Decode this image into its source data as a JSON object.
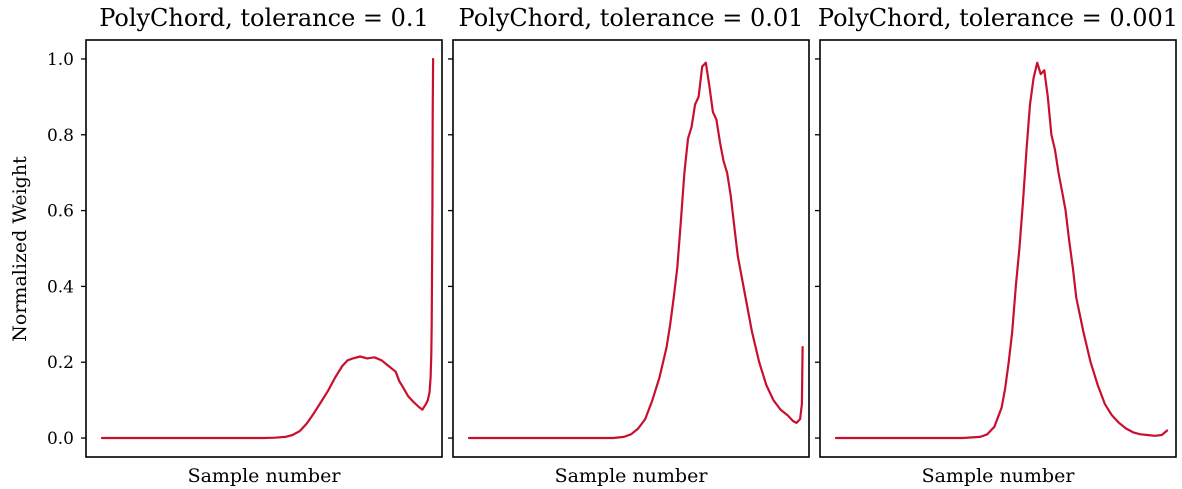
{
  "chart_data": [
    {
      "type": "line",
      "title": "PolyChord, tolerance = 0.1",
      "xlabel": "Sample number",
      "ylabel": "Normalized Weight",
      "ylim": [
        -0.05,
        1.05
      ],
      "xlim": [
        0,
        1
      ],
      "yticks": [
        "0.0",
        "0.2",
        "0.4",
        "0.6",
        "0.8",
        "1.0"
      ],
      "show_yticks": true,
      "grid": false,
      "color": "#c8102e",
      "series": [
        {
          "x": [
            0.045,
            0.1,
            0.2,
            0.3,
            0.4,
            0.5,
            0.53,
            0.56,
            0.58,
            0.6,
            0.62,
            0.64,
            0.66,
            0.68,
            0.7,
            0.72,
            0.735,
            0.75,
            0.77,
            0.79,
            0.81,
            0.83,
            0.85,
            0.87,
            0.88,
            0.89,
            0.905,
            0.92,
            0.935,
            0.945,
            0.955,
            0.96,
            0.965,
            0.968,
            0.97,
            0.971,
            0.972,
            0.973,
            0.974,
            0.975
          ],
          "y": [
            0.0,
            0.0,
            0.0,
            0.0,
            0.0,
            0.0,
            0.001,
            0.003,
            0.008,
            0.018,
            0.038,
            0.065,
            0.095,
            0.125,
            0.16,
            0.19,
            0.205,
            0.21,
            0.215,
            0.21,
            0.213,
            0.205,
            0.19,
            0.175,
            0.15,
            0.135,
            0.11,
            0.095,
            0.082,
            0.075,
            0.09,
            0.1,
            0.12,
            0.16,
            0.22,
            0.3,
            0.42,
            0.6,
            0.85,
            1.0
          ]
        }
      ]
    },
    {
      "type": "line",
      "title": "PolyChord, tolerance = 0.01",
      "xlabel": "Sample number",
      "ylabel": "",
      "ylim": [
        -0.05,
        1.05
      ],
      "xlim": [
        0,
        1
      ],
      "yticks": [
        "0.0",
        "0.2",
        "0.4",
        "0.6",
        "0.8",
        "1.0"
      ],
      "show_yticks": false,
      "grid": false,
      "color": "#c8102e",
      "series": [
        {
          "x": [
            0.045,
            0.1,
            0.2,
            0.3,
            0.4,
            0.45,
            0.48,
            0.5,
            0.52,
            0.54,
            0.56,
            0.58,
            0.6,
            0.61,
            0.62,
            0.63,
            0.64,
            0.65,
            0.66,
            0.67,
            0.68,
            0.69,
            0.7,
            0.71,
            0.72,
            0.73,
            0.74,
            0.75,
            0.76,
            0.77,
            0.78,
            0.79,
            0.8,
            0.82,
            0.84,
            0.86,
            0.88,
            0.9,
            0.92,
            0.94,
            0.955,
            0.965,
            0.975,
            0.98,
            0.982
          ],
          "y": [
            0.0,
            0.0,
            0.0,
            0.0,
            0.0,
            0.0,
            0.003,
            0.01,
            0.025,
            0.05,
            0.1,
            0.16,
            0.24,
            0.3,
            0.37,
            0.45,
            0.57,
            0.7,
            0.79,
            0.82,
            0.88,
            0.9,
            0.98,
            0.99,
            0.93,
            0.86,
            0.84,
            0.78,
            0.73,
            0.7,
            0.64,
            0.56,
            0.48,
            0.38,
            0.28,
            0.2,
            0.14,
            0.1,
            0.075,
            0.06,
            0.045,
            0.04,
            0.05,
            0.09,
            0.24
          ]
        }
      ]
    },
    {
      "type": "line",
      "title": "PolyChord, tolerance = 0.001",
      "xlabel": "Sample number",
      "ylabel": "",
      "ylim": [
        -0.05,
        1.05
      ],
      "xlim": [
        0,
        1
      ],
      "yticks": [
        "0.0",
        "0.2",
        "0.4",
        "0.6",
        "0.8",
        "1.0"
      ],
      "show_yticks": false,
      "grid": false,
      "color": "#c8102e",
      "series": [
        {
          "x": [
            0.045,
            0.1,
            0.2,
            0.3,
            0.4,
            0.45,
            0.47,
            0.49,
            0.51,
            0.52,
            0.53,
            0.54,
            0.55,
            0.56,
            0.57,
            0.58,
            0.59,
            0.6,
            0.61,
            0.62,
            0.63,
            0.64,
            0.65,
            0.66,
            0.67,
            0.68,
            0.69,
            0.7,
            0.71,
            0.72,
            0.74,
            0.76,
            0.78,
            0.8,
            0.82,
            0.84,
            0.86,
            0.88,
            0.9,
            0.92,
            0.94,
            0.96,
            0.975
          ],
          "y": [
            0.0,
            0.0,
            0.0,
            0.0,
            0.0,
            0.003,
            0.01,
            0.03,
            0.08,
            0.13,
            0.2,
            0.28,
            0.4,
            0.5,
            0.62,
            0.76,
            0.88,
            0.95,
            0.99,
            0.96,
            0.97,
            0.9,
            0.8,
            0.76,
            0.7,
            0.65,
            0.6,
            0.52,
            0.45,
            0.37,
            0.28,
            0.2,
            0.14,
            0.09,
            0.06,
            0.04,
            0.025,
            0.015,
            0.01,
            0.008,
            0.006,
            0.008,
            0.02
          ]
        }
      ]
    }
  ]
}
